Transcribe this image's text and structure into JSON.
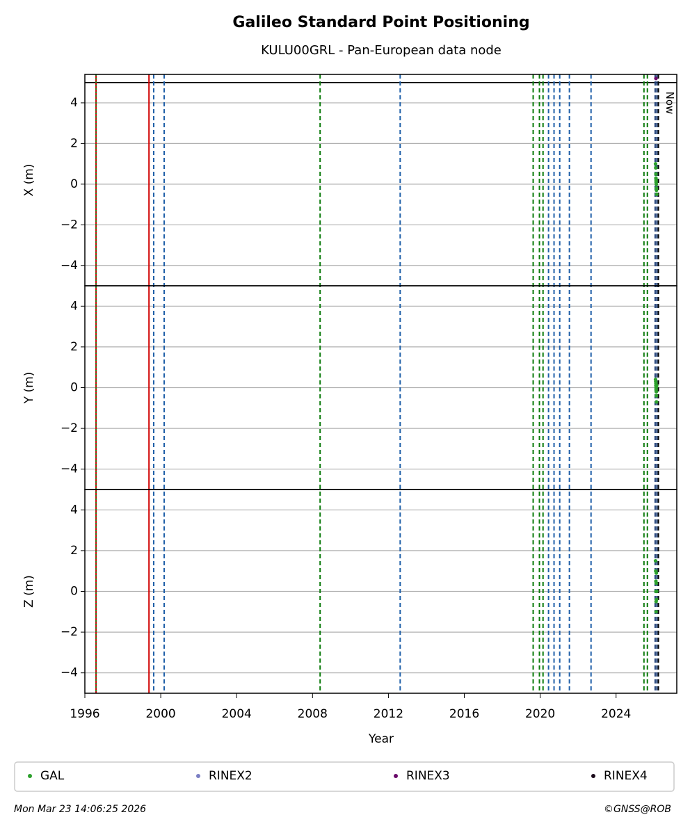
{
  "chart_data": {
    "type": "scatter",
    "title": "Galileo Standard Point Positioning",
    "subtitle": "KULU00GRL - Pan-European data node",
    "xlabel": "Year",
    "xlim": [
      1996,
      2027.2
    ],
    "xticks": [
      1996,
      2000,
      2004,
      2008,
      2012,
      2016,
      2020,
      2024
    ],
    "grid": true,
    "series": [
      {
        "name": "GAL",
        "color": "#2ca02c"
      },
      {
        "name": "RINEX2",
        "color": "#7b7fc4"
      },
      {
        "name": "RINEX3",
        "color": "#6a0a6a"
      },
      {
        "name": "RINEX4",
        "color": "#1a0a1a"
      }
    ],
    "panels": [
      {
        "ylabel": "X (m)",
        "ylim": [
          -5,
          5.4
        ],
        "hlines": [
          5
        ],
        "yticks": [
          {
            "value": -4,
            "label": "−4"
          },
          {
            "value": -2,
            "label": "−2"
          },
          0,
          2,
          4
        ],
        "data": [
          {
            "x": [
              2026.08,
              2026.09,
              2026.1,
              2026.1,
              2026.11,
              2026.11,
              2026.12,
              2026.12,
              2026.13,
              2026.14
            ],
            "values": [
              1.0,
              0.8,
              0.5,
              0.3,
              0.2,
              0.1,
              0,
              -0.2,
              -0.3,
              -0.5
            ]
          },
          {
            "x": [],
            "values": []
          },
          {
            "x": [
              2026.1
            ],
            "values": [
              5.2
            ]
          },
          {
            "x": [],
            "values": []
          }
        ]
      },
      {
        "ylabel": "Y (m)",
        "ylim": [
          -5,
          5
        ],
        "hlines": [],
        "yticks": [
          {
            "value": -4,
            "label": "−4"
          },
          {
            "value": -2,
            "label": "−2"
          },
          0,
          2,
          4
        ],
        "data": [
          {
            "x": [
              2026.08,
              2026.09,
              2026.1,
              2026.1,
              2026.11,
              2026.11,
              2026.12,
              2026.12,
              2026.13,
              2026.14
            ],
            "values": [
              0.4,
              0.3,
              0.2,
              0.1,
              0,
              -0.1,
              -0.2,
              -0.4,
              -0.7,
              0.1
            ]
          },
          {
            "x": [],
            "values": []
          },
          {
            "x": [],
            "values": []
          },
          {
            "x": [],
            "values": []
          }
        ]
      },
      {
        "ylabel": "Z (m)",
        "ylim": [
          -5,
          5
        ],
        "hlines": [],
        "yticks": [
          {
            "value": -4,
            "label": "−4"
          },
          {
            "value": -2,
            "label": "−2"
          },
          0,
          2,
          4
        ],
        "data": [
          {
            "x": [
              2026.08,
              2026.09,
              2026.1,
              2026.1,
              2026.11,
              2026.11,
              2026.12,
              2026.12,
              2026.13,
              2026.14
            ],
            "values": [
              1.5,
              1.0,
              0.5,
              0,
              -0.5,
              -1.0,
              0.9,
              0.4,
              -0.4,
              0
            ]
          },
          {
            "x": [],
            "values": []
          },
          {
            "x": [],
            "values": []
          },
          {
            "x": [],
            "values": []
          }
        ]
      }
    ],
    "vlines": [
      {
        "x": 1996.59,
        "color": "#c00000",
        "style": "solid"
      },
      {
        "x": 1996.59,
        "color": "#1a8a1a",
        "style": "dotted"
      },
      {
        "x": 1999.38,
        "color": "#d00000",
        "style": "solid"
      },
      {
        "x": 1999.63,
        "color": "#1f5fa8",
        "style": "dashed"
      },
      {
        "x": 2000.18,
        "color": "#1f5fa8",
        "style": "dashed"
      },
      {
        "x": 2008.4,
        "color": "#0a7a0a",
        "style": "dashed"
      },
      {
        "x": 2012.62,
        "color": "#1f5fa8",
        "style": "dashed"
      },
      {
        "x": 2019.63,
        "color": "#0a7a0a",
        "style": "dashed"
      },
      {
        "x": 2019.96,
        "color": "#0a7a0a",
        "style": "dashed"
      },
      {
        "x": 2020.15,
        "color": "#0a7a0a",
        "style": "dashed"
      },
      {
        "x": 2020.44,
        "color": "#1f5fa8",
        "style": "dashed"
      },
      {
        "x": 2020.73,
        "color": "#1f5fa8",
        "style": "dashed"
      },
      {
        "x": 2021.03,
        "color": "#1f5fa8",
        "style": "dashed"
      },
      {
        "x": 2021.54,
        "color": "#1f5fa8",
        "style": "dashed"
      },
      {
        "x": 2022.68,
        "color": "#1f5fa8",
        "style": "dashed"
      },
      {
        "x": 2025.47,
        "color": "#0a7a0a",
        "style": "dashed"
      },
      {
        "x": 2025.65,
        "color": "#0a7a0a",
        "style": "dashed"
      },
      {
        "x": 2026.06,
        "color": "#1f3f78",
        "style": "dashed"
      },
      {
        "x": 2026.15,
        "color": "#1f3f78",
        "style": "dashed"
      }
    ],
    "now": 2026.23,
    "now_label": "Now",
    "timestamp": "Mon Mar 23 14:06:25 2026",
    "copyright": "©GNSS@ROB"
  }
}
